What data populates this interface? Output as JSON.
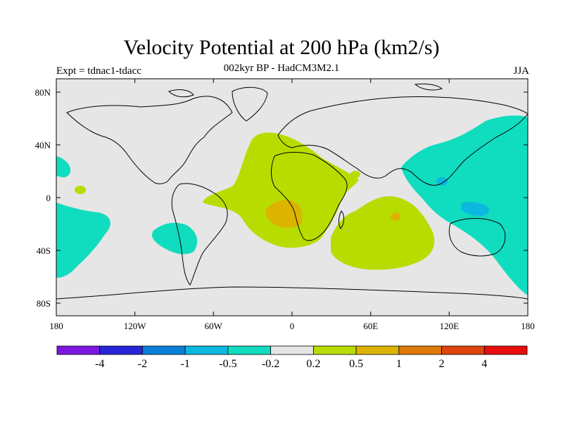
{
  "title": "Velocity Potential at 200 hPa (km2/s)",
  "subtitle": "002kyr BP - HadCM3M2.1",
  "experiment_label": "Expt = tdnac1-tdacc",
  "season": "JJA",
  "map": {
    "projection": "cylindrical equidistant",
    "lon_range": [
      -180,
      180
    ],
    "lat_range": [
      -90,
      90
    ],
    "lat_ticks": [
      "80N",
      "40N",
      "0",
      "40S",
      "80S"
    ],
    "lon_ticks": [
      "180",
      "120W",
      "60W",
      "0",
      "60E",
      "120E",
      "180"
    ]
  },
  "colorbar": {
    "colors": [
      "#7b16e0",
      "#2626d8",
      "#0a7fd8",
      "#0ab8e0",
      "#10dcbf",
      "#e6e6e6",
      "#b8dc00",
      "#dcb400",
      "#e07a0a",
      "#e0440e",
      "#e80d0d"
    ],
    "labels": [
      "-4",
      "-2",
      "-1",
      "-0.5",
      "-0.2",
      "0.2",
      "0.5",
      "1",
      "2",
      "4"
    ]
  },
  "fill_colors": {
    "background": "#e6e6e6",
    "negative_weak": "#10dcbf",
    "negative_mid": "#0ab8e0",
    "positive_weak": "#b8dc00",
    "positive_mid": "#dcb400"
  }
}
